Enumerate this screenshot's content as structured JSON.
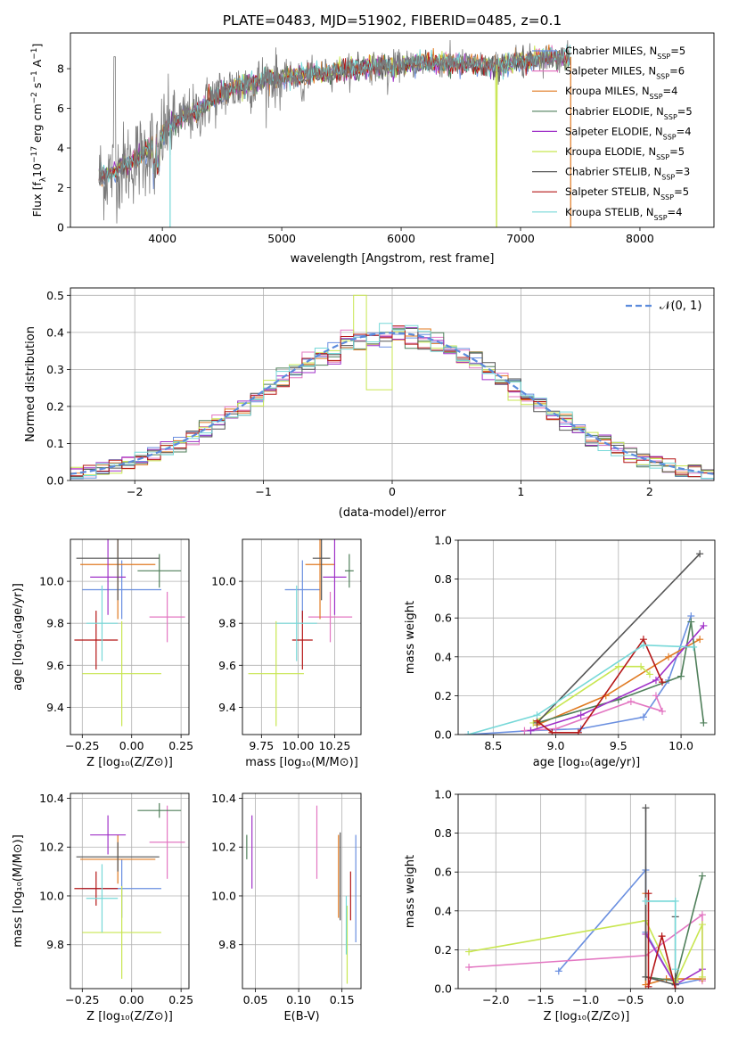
{
  "colors": {
    "Chabrier MILES": "#6a8fe0",
    "Salpeter MILES": "#e377c2",
    "Kroupa MILES": "#e07a22",
    "Chabrier ELODIE": "#4f7f5a",
    "Salpeter ELODIE": "#a032c8",
    "Kroupa ELODIE": "#c8e650",
    "Chabrier STELIB": "#555555",
    "Salpeter STELIB": "#b51616",
    "Kroupa STELIB": "#76d8d8"
  },
  "chart_data": [
    {
      "id": "spectrum",
      "type": "line",
      "title": "PLATE=0483, MJD=51902, FIBERID=0485, z=0.1",
      "xlabel": "wavelength [Angstrom, rest frame]",
      "ylabel_main": "Flux [f",
      "ylabel_sub1": "λ",
      "ylabel_mid": "10",
      "ylabel_sup1": "−17",
      "ylabel_mid2": " erg cm",
      "ylabel_sup2": "−2",
      "ylabel_mid3": " s",
      "ylabel_sup3": "−1",
      "ylabel_mid4": " A",
      "ylabel_sup4": "−1",
      "ylabel_end": "]",
      "xlim": [
        3230,
        8620
      ],
      "ylim": [
        0,
        9.8
      ],
      "xticks": [
        "4000",
        "5000",
        "6000",
        "7000",
        "8000"
      ],
      "yticks": [
        "0",
        "2",
        "4",
        "6",
        "8"
      ],
      "grid": false,
      "legend_position": "upper-right",
      "legend": [
        {
          "model": "Chabrier MILES",
          "label": "Chabrier MILES, N",
          "sub": "SSP",
          "n": "=5"
        },
        {
          "model": "Salpeter MILES",
          "label": "Salpeter MILES, N",
          "sub": "SSP",
          "n": "=6"
        },
        {
          "model": "Kroupa MILES",
          "label": "Kroupa MILES, N",
          "sub": "SSP",
          "n": "=4"
        },
        {
          "model": "Chabrier ELODIE",
          "label": "Chabrier ELODIE, N",
          "sub": "SSP",
          "n": "=5"
        },
        {
          "model": "Salpeter ELODIE",
          "label": "Salpeter ELODIE, N",
          "sub": "SSP",
          "n": "=4"
        },
        {
          "model": "Kroupa ELODIE",
          "label": "Kroupa ELODIE, N",
          "sub": "SSP",
          "n": "=5"
        },
        {
          "model": "Chabrier STELIB",
          "label": "Chabrier STELIB, N",
          "sub": "SSP",
          "n": "=3"
        },
        {
          "model": "Salpeter STELIB",
          "label": "Salpeter STELIB, N",
          "sub": "SSP",
          "n": "=5"
        },
        {
          "model": "Kroupa STELIB",
          "label": "Kroupa STELIB, N",
          "sub": "SSP",
          "n": "=4"
        }
      ],
      "data_series_color": "#7a7a7a",
      "model_series_color": "#76d8d8",
      "continuum_x": [
        3500,
        3600,
        3700,
        3800,
        3900,
        4000,
        4100,
        4200,
        4300,
        4400,
        4500,
        4600,
        4700,
        4800,
        4900,
        5000,
        5200,
        5400,
        5600,
        5800,
        6000,
        6200,
        6400,
        6600,
        6800,
        7000,
        7200,
        7400
      ],
      "continuum_y": [
        2.6,
        2.8,
        3.2,
        3.5,
        4.0,
        4.7,
        5.3,
        5.6,
        5.8,
        6.4,
        6.8,
        7.0,
        7.2,
        7.3,
        7.5,
        7.5,
        7.7,
        7.8,
        8.0,
        8.1,
        8.2,
        8.3,
        8.3,
        8.2,
        8.1,
        8.4,
        8.5,
        8.6
      ],
      "annotations": [
        "Kroupa ELODIE spike to 0 near 6800",
        "Salpeter/Kroupa MILES drop to 0 near 7420"
      ]
    },
    {
      "id": "residuals",
      "type": "histogram",
      "xlabel": "(data-model)/error",
      "ylabel": "Normed distribution",
      "xlim": [
        -2.5,
        2.5
      ],
      "ylim": [
        0,
        0.52
      ],
      "xticks": [
        "−2",
        "−1",
        "0",
        "1",
        "2"
      ],
      "yticks": [
        "0.0",
        "0.1",
        "0.2",
        "0.3",
        "0.4",
        "0.5"
      ],
      "grid": true,
      "legend_position": "upper-right",
      "legend_label": "𝒩(0, 1)",
      "normal_curve_color": "#5b8bdc"
    },
    {
      "id": "age-vs-Z",
      "type": "errorbar",
      "xlabel": "Z [log₁₀(Z/Z⊙)]",
      "ylabel": "age  [log₁₀(age/yr)]",
      "xlim": [
        -0.31,
        0.29
      ],
      "ylim": [
        9.27,
        10.2
      ],
      "xticks": [
        "−0.25",
        "0.00",
        "0.25"
      ],
      "yticks": [
        "9.4",
        "9.6",
        "9.8",
        "10.0"
      ],
      "grid": true,
      "points": [
        {
          "model": "Chabrier MILES",
          "x": -0.05,
          "xerr": 0.2,
          "y": 9.96,
          "yerr": 0.14
        },
        {
          "model": "Salpeter MILES",
          "x": 0.18,
          "xerr": 0.09,
          "y": 9.83,
          "yerr": 0.12
        },
        {
          "model": "Kroupa MILES",
          "x": -0.07,
          "xerr": 0.19,
          "y": 10.08,
          "yerr": 0.26
        },
        {
          "model": "Chabrier ELODIE",
          "x": 0.14,
          "xerr": 0.11,
          "y": 10.05,
          "yerr": 0.08
        },
        {
          "model": "Salpeter ELODIE",
          "x": -0.12,
          "xerr": 0.09,
          "y": 10.02,
          "yerr": 0.18
        },
        {
          "model": "Kroupa ELODIE",
          "x": -0.05,
          "xerr": 0.2,
          "y": 9.56,
          "yerr": 0.25
        },
        {
          "model": "Chabrier STELIB",
          "x": -0.07,
          "xerr": 0.21,
          "y": 10.11,
          "yerr": 0.2
        },
        {
          "model": "Salpeter STELIB",
          "x": -0.18,
          "xerr": 0.11,
          "y": 9.72,
          "yerr": 0.14
        },
        {
          "model": "Kroupa STELIB",
          "x": -0.15,
          "xerr": 0.08,
          "y": 9.8,
          "yerr": 0.18
        }
      ]
    },
    {
      "id": "age-vs-mass",
      "type": "errorbar",
      "xlabel": "mass [log₁₀(M/M⊙)]",
      "xlim": [
        9.62,
        10.43
      ],
      "ylim": [
        9.27,
        10.2
      ],
      "xticks": [
        "9.75",
        "10.00",
        "10.25"
      ],
      "yticks": [
        "9.4",
        "9.6",
        "9.8",
        "10.0"
      ],
      "grid": true,
      "points": [
        {
          "model": "Chabrier MILES",
          "x": 10.03,
          "xerr": 0.12,
          "y": 9.96,
          "yerr": 0.14
        },
        {
          "model": "Salpeter MILES",
          "x": 10.22,
          "xerr": 0.15,
          "y": 9.83,
          "yerr": 0.12
        },
        {
          "model": "Kroupa MILES",
          "x": 10.15,
          "xerr": 0.1,
          "y": 10.08,
          "yerr": 0.26
        },
        {
          "model": "Chabrier ELODIE",
          "x": 10.35,
          "xerr": 0.03,
          "y": 10.05,
          "yerr": 0.08
        },
        {
          "model": "Salpeter ELODIE",
          "x": 10.25,
          "xerr": 0.08,
          "y": 10.02,
          "yerr": 0.18
        },
        {
          "model": "Kroupa ELODIE",
          "x": 9.85,
          "xerr": 0.19,
          "y": 9.56,
          "yerr": 0.25
        },
        {
          "model": "Chabrier STELIB",
          "x": 10.16,
          "xerr": 0.06,
          "y": 10.11,
          "yerr": 0.2
        },
        {
          "model": "Salpeter STELIB",
          "x": 10.03,
          "xerr": 0.07,
          "y": 9.72,
          "yerr": 0.14
        },
        {
          "model": "Kroupa STELIB",
          "x": 9.99,
          "xerr": 0.14,
          "y": 9.8,
          "yerr": 0.18
        }
      ]
    },
    {
      "id": "weight-vs-age",
      "type": "line",
      "xlabel": "age  [log₁₀(age/yr)]",
      "ylabel": "mass weight",
      "xlim": [
        8.22,
        10.27
      ],
      "ylim": [
        0,
        1.0
      ],
      "xticks": [
        "8.5",
        "9.0",
        "9.5",
        "10.0"
      ],
      "yticks": [
        "0.0",
        "0.2",
        "0.4",
        "0.6",
        "0.8",
        "1.0"
      ],
      "grid": true,
      "series": [
        {
          "model": "Chabrier MILES",
          "x": [
            8.3,
            8.8,
            9.2,
            9.7,
            9.9,
            10.08
          ],
          "y": [
            0.0,
            0.02,
            0.03,
            0.09,
            0.28,
            0.61
          ]
        },
        {
          "model": "Salpeter MILES",
          "x": [
            8.75,
            9.0,
            9.6,
            9.85,
            9.8
          ],
          "y": [
            0.02,
            0.03,
            0.17,
            0.12,
            0.2
          ]
        },
        {
          "model": "Kroupa MILES",
          "x": [
            8.85,
            9.4,
            9.9,
            10.15
          ],
          "y": [
            0.05,
            0.2,
            0.4,
            0.49
          ]
        },
        {
          "model": "Chabrier ELODIE",
          "x": [
            8.85,
            9.5,
            10.0,
            10.08,
            10.18
          ],
          "y": [
            0.06,
            0.18,
            0.3,
            0.58,
            0.06
          ]
        },
        {
          "model": "Salpeter ELODIE",
          "x": [
            8.8,
            9.2,
            9.8,
            10.18
          ],
          "y": [
            0.02,
            0.1,
            0.28,
            0.56
          ]
        },
        {
          "model": "Kroupa ELODIE",
          "x": [
            8.82,
            9.5,
            9.68,
            9.75
          ],
          "y": [
            0.06,
            0.35,
            0.35,
            0.31
          ]
        },
        {
          "model": "Chabrier STELIB",
          "x": [
            8.85,
            10.15
          ],
          "y": [
            0.06,
            0.93
          ]
        },
        {
          "model": "Salpeter STELIB",
          "x": [
            8.85,
            8.97,
            9.18,
            9.7,
            9.85
          ],
          "y": [
            0.07,
            0.01,
            0.01,
            0.49,
            0.27
          ]
        },
        {
          "model": "Kroupa STELIB",
          "x": [
            8.3,
            8.85,
            9.7,
            10.1
          ],
          "y": [
            0.0,
            0.1,
            0.46,
            0.45
          ]
        }
      ]
    },
    {
      "id": "mass-vs-Z",
      "type": "errorbar",
      "xlabel": "Z [log₁₀(Z/Z⊙)]",
      "ylabel": "mass [log₁₀(M/M⊙)]",
      "xlim": [
        -0.31,
        0.29
      ],
      "ylim": [
        9.62,
        10.42
      ],
      "xticks": [
        "−0.25",
        "0.00",
        "0.25"
      ],
      "yticks": [
        "9.8",
        "10.0",
        "10.2",
        "10.4"
      ],
      "grid": true,
      "points": [
        {
          "model": "Chabrier MILES",
          "x": -0.05,
          "xerr": 0.2,
          "y": 10.03,
          "yerr": 0.12
        },
        {
          "model": "Salpeter MILES",
          "x": 0.18,
          "xerr": 0.09,
          "y": 10.22,
          "yerr": 0.15
        },
        {
          "model": "Kroupa MILES",
          "x": -0.07,
          "xerr": 0.19,
          "y": 10.15,
          "yerr": 0.1
        },
        {
          "model": "Chabrier ELODIE",
          "x": 0.14,
          "xerr": 0.11,
          "y": 10.35,
          "yerr": 0.03
        },
        {
          "model": "Salpeter ELODIE",
          "x": -0.12,
          "xerr": 0.09,
          "y": 10.25,
          "yerr": 0.08
        },
        {
          "model": "Kroupa ELODIE",
          "x": -0.05,
          "xerr": 0.2,
          "y": 9.85,
          "yerr": 0.19
        },
        {
          "model": "Chabrier STELIB",
          "x": -0.07,
          "xerr": 0.21,
          "y": 10.16,
          "yerr": 0.06
        },
        {
          "model": "Salpeter STELIB",
          "x": -0.18,
          "xerr": 0.11,
          "y": 10.03,
          "yerr": 0.07
        },
        {
          "model": "Kroupa STELIB",
          "x": -0.15,
          "xerr": 0.08,
          "y": 9.99,
          "yerr": 0.14
        }
      ]
    },
    {
      "id": "mass-vs-ebv",
      "type": "errorbar",
      "xlabel": "E(B-V)",
      "xlim": [
        0.035,
        0.172
      ],
      "ylim": [
        9.62,
        10.42
      ],
      "xticks": [
        "0.05",
        "0.10",
        "0.15"
      ],
      "yticks": [
        "9.8",
        "10.0",
        "10.2",
        "10.4"
      ],
      "grid": true,
      "points": [
        {
          "model": "Chabrier MILES",
          "x": 0.166,
          "xerr": 0,
          "y": 10.03,
          "yerr": 0.22
        },
        {
          "model": "Salpeter MILES",
          "x": 0.121,
          "xerr": 0,
          "y": 10.22,
          "yerr": 0.15
        },
        {
          "model": "Kroupa MILES",
          "x": 0.146,
          "xerr": 0,
          "y": 10.08,
          "yerr": 0.17
        },
        {
          "model": "Chabrier ELODIE",
          "x": 0.04,
          "xerr": 0,
          "y": 10.2,
          "yerr": 0.05
        },
        {
          "model": "Salpeter ELODIE",
          "x": 0.046,
          "xerr": 0,
          "y": 10.18,
          "yerr": 0.15
        },
        {
          "model": "Kroupa ELODIE",
          "x": 0.156,
          "xerr": 0,
          "y": 9.8,
          "yerr": 0.16
        },
        {
          "model": "Chabrier STELIB",
          "x": 0.148,
          "xerr": 0,
          "y": 10.08,
          "yerr": 0.18
        },
        {
          "model": "Salpeter STELIB",
          "x": 0.16,
          "xerr": 0,
          "y": 10.0,
          "yerr": 0.1
        },
        {
          "model": "Kroupa STELIB",
          "x": 0.155,
          "xerr": 0,
          "y": 9.88,
          "yerr": 0.12
        }
      ]
    },
    {
      "id": "weight-vs-Z",
      "type": "line",
      "xlabel": "Z [log₁₀(Z/Z⊙)]",
      "ylabel": "mass weight",
      "xlim": [
        -2.42,
        0.44
      ],
      "ylim": [
        0,
        1.0
      ],
      "xticks": [
        "−2.0",
        "−1.5",
        "−1.0",
        "−0.5",
        "0.0"
      ],
      "yticks": [
        "0.0",
        "0.2",
        "0.4",
        "0.6",
        "0.8",
        "1.0"
      ],
      "grid": true,
      "series": [
        {
          "model": "Chabrier MILES",
          "x": [
            -1.3,
            -0.33,
            -0.33,
            0.0,
            0.3
          ],
          "y": [
            0.09,
            0.61,
            0.29,
            0.02,
            0.05
          ]
        },
        {
          "model": "Salpeter MILES",
          "x": [
            -2.3,
            -0.33,
            0.3,
            0.3
          ],
          "y": [
            0.11,
            0.17,
            0.38,
            0.04
          ]
        },
        {
          "model": "Kroupa MILES",
          "x": [
            -0.33,
            -0.33,
            -0.1,
            0.3
          ],
          "y": [
            0.49,
            0.02,
            0.05,
            0.05
          ]
        },
        {
          "model": "Chabrier ELODIE",
          "x": [
            -0.33,
            0.0,
            0.3
          ],
          "y": [
            0.06,
            0.04,
            0.58
          ]
        },
        {
          "model": "Salpeter ELODIE",
          "x": [
            -0.33,
            0.0,
            0.3
          ],
          "y": [
            0.28,
            0.02,
            0.1
          ]
        },
        {
          "model": "Kroupa ELODIE",
          "x": [
            -2.3,
            -0.33,
            0.0,
            0.3,
            0.3
          ],
          "y": [
            0.19,
            0.35,
            0.03,
            0.33,
            0.06
          ]
        },
        {
          "model": "Chabrier STELIB",
          "x": [
            -0.33,
            -0.33,
            0.0,
            0.0
          ],
          "y": [
            0.93,
            0.06,
            0.02,
            0.37
          ]
        },
        {
          "model": "Salpeter STELIB",
          "x": [
            -0.3,
            -0.3,
            -0.15,
            0.0
          ],
          "y": [
            0.49,
            0.01,
            0.27,
            0.0
          ]
        },
        {
          "model": "Kroupa STELIB",
          "x": [
            -0.33,
            0.0,
            0.0
          ],
          "y": [
            0.45,
            0.45,
            0.1
          ]
        }
      ]
    }
  ]
}
